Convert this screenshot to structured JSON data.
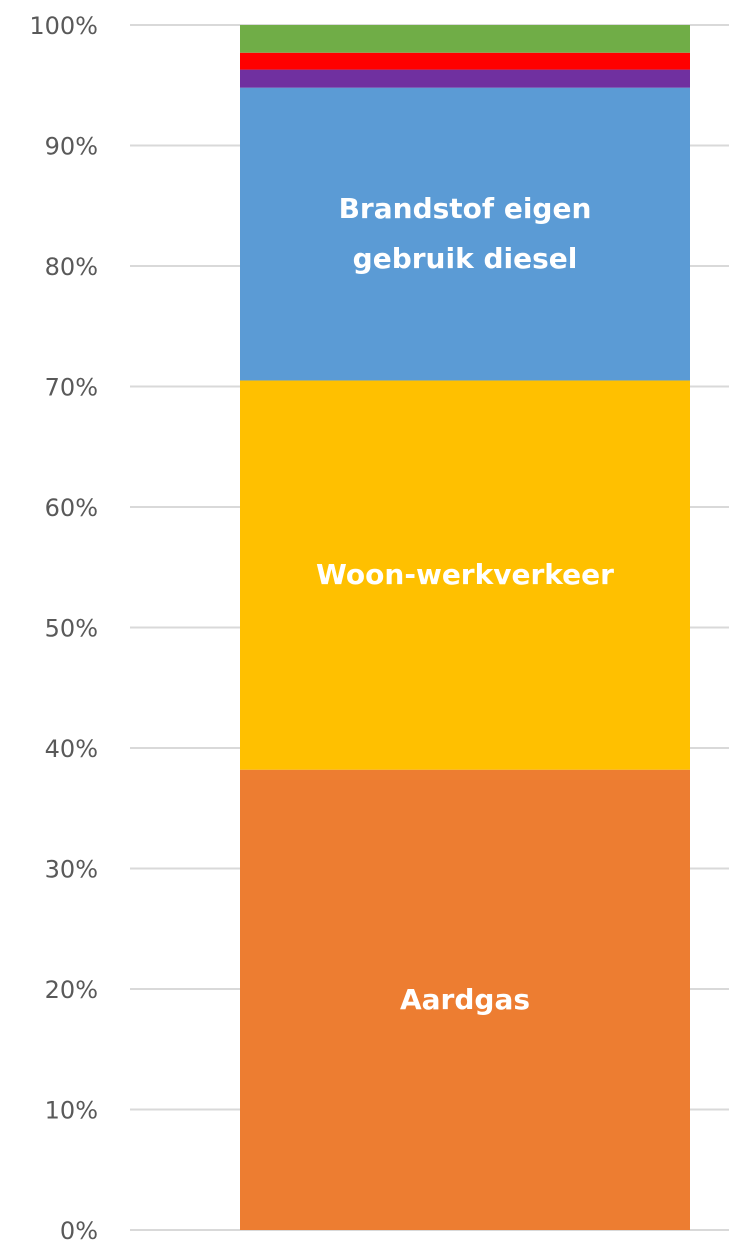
{
  "chart_data": {
    "type": "stacked-bar",
    "categories": [
      null
    ],
    "series": [
      {
        "name": "Aardgas",
        "color": "#ed7d31",
        "values": [
          38.2
        ]
      },
      {
        "name": "Woon-werkverkeer",
        "color": "#ffc000",
        "values": [
          32.3
        ]
      },
      {
        "name": "Brandstof eigen gebruik diesel",
        "color": "#5b9bd5",
        "values": [
          24.3
        ]
      },
      {
        "color": "#7030a0",
        "values": [
          1.5
        ]
      },
      {
        "color": "#ff0000",
        "values": [
          1.4
        ]
      },
      {
        "color": "#70ad47",
        "values": [
          2.3
        ]
      }
    ],
    "ylim": [
      0,
      100
    ],
    "yticks": [
      {
        "value": 0,
        "label": "0%"
      },
      {
        "value": 10,
        "label": "10%"
      },
      {
        "value": 20,
        "label": "20%"
      },
      {
        "value": 30,
        "label": "30%"
      },
      {
        "value": 40,
        "label": "40%"
      },
      {
        "value": 50,
        "label": "50%"
      },
      {
        "value": 60,
        "label": "60%"
      },
      {
        "value": 70,
        "label": "70%"
      },
      {
        "value": 80,
        "label": "80%"
      },
      {
        "value": 90,
        "label": "90%"
      },
      {
        "value": 100,
        "label": "100%"
      }
    ],
    "grid": true
  }
}
